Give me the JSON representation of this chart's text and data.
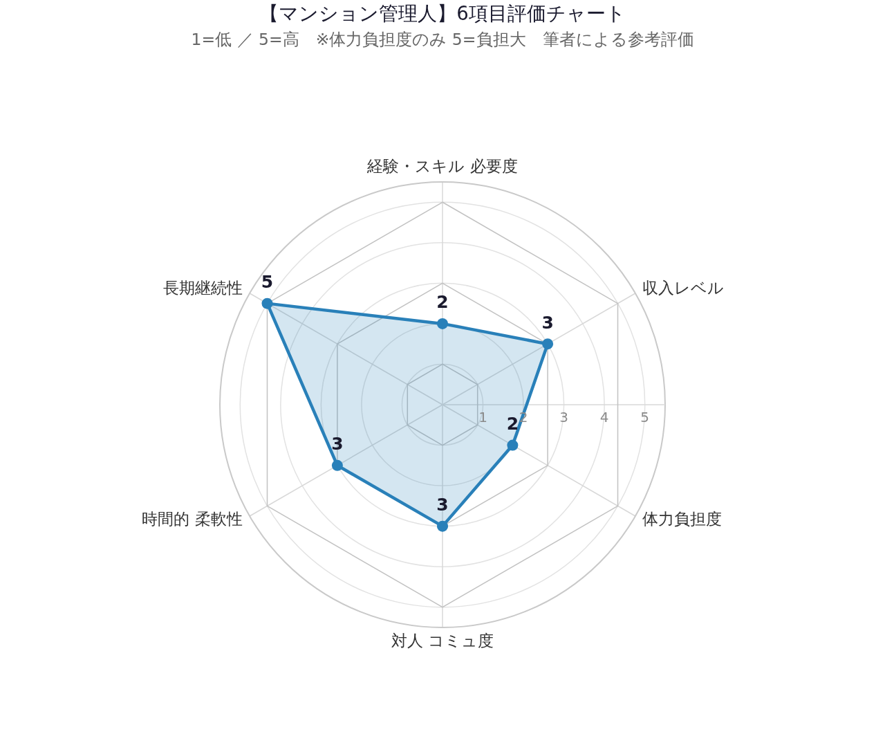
{
  "chart_data": {
    "type": "radar",
    "title": "【マンション管理人】6項目評価チャート",
    "subtitle": "1=低 ／ 5=高　※体力負担度のみ 5=負担大　筆者による参考評価",
    "categories": [
      "経験・スキル 必要度",
      "収入レベル",
      "体力負担度",
      "対人 コミュ度",
      "時間的 柔軟性",
      "長期継続性"
    ],
    "series": [
      {
        "color": "#2980b9",
        "values": [
          2,
          3,
          2,
          3,
          3,
          5
        ]
      }
    ],
    "ylim": [
      0,
      5.5
    ],
    "yticks": [
      1,
      2,
      3,
      4,
      5
    ],
    "grid": true,
    "marker": "circle",
    "data_labels": true
  }
}
